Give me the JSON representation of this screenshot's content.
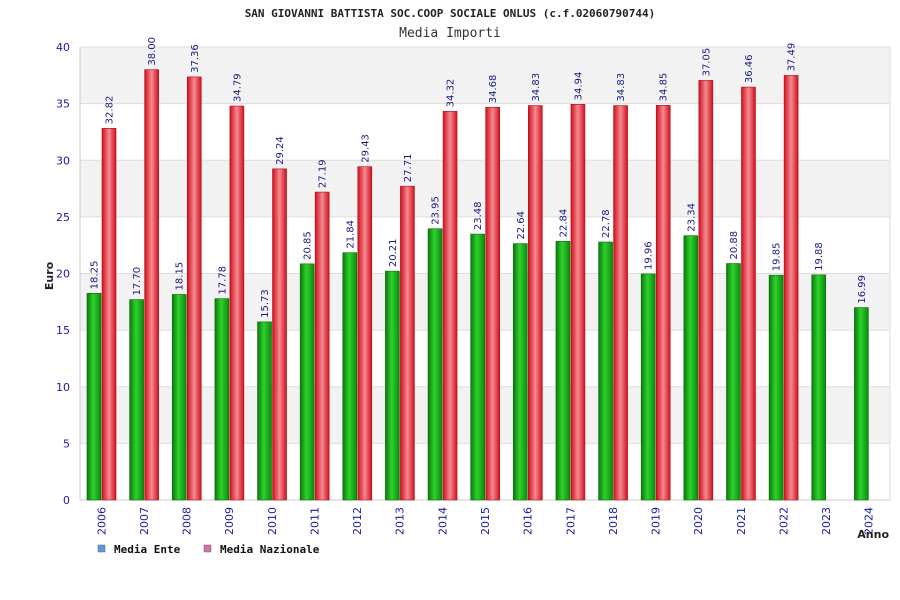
{
  "chart_data": {
    "type": "bar",
    "title": "SAN GIOVANNI BATTISTA SOC.COOP SOCIALE ONLUS (c.f.02060790744)",
    "subtitle": "Media Importi",
    "xlabel": "Anno",
    "ylabel": "Euro",
    "ylim": [
      0,
      40
    ],
    "yticks": [
      "0",
      "5",
      "10",
      "15",
      "20",
      "25",
      "30",
      "35",
      "40"
    ],
    "grid": true,
    "legend_position": "bottom-left",
    "categories": [
      "2006",
      "2007",
      "2008",
      "2009",
      "2010",
      "2011",
      "2012",
      "2013",
      "2014",
      "2015",
      "2016",
      "2017",
      "2018",
      "2019",
      "2020",
      "2021",
      "2022",
      "2023",
      "2024"
    ],
    "series": [
      {
        "name": "Media Ente",
        "color": "#1aa51a",
        "legend_color": "#5b9bd5",
        "values": [
          18.25,
          17.7,
          18.15,
          17.78,
          15.73,
          20.85,
          21.84,
          20.21,
          23.95,
          23.48,
          22.64,
          22.84,
          22.78,
          19.96,
          23.34,
          20.88,
          19.85,
          19.88,
          16.99
        ],
        "labels": [
          "18.25",
          "17.70",
          "18.15",
          "17.78",
          "15.73",
          "20.85",
          "21.84",
          "20.21",
          "23.95",
          "23.48",
          "22.64",
          "22.84",
          "22.78",
          "19.96",
          "23.34",
          "20.88",
          "19.85",
          "19.88",
          "16.99"
        ]
      },
      {
        "name": "Media Nazionale",
        "color": "#e8222e",
        "legend_color": "#d96fa8",
        "values": [
          32.82,
          38.0,
          37.36,
          34.79,
          29.24,
          27.19,
          29.43,
          27.71,
          34.32,
          34.68,
          34.83,
          34.94,
          34.83,
          34.85,
          37.05,
          36.46,
          37.49,
          null,
          null
        ],
        "labels": [
          "32.82",
          "38.00",
          "37.36",
          "34.79",
          "29.24",
          "27.19",
          "29.43",
          "27.71",
          "34.32",
          "34.68",
          "34.83",
          "34.94",
          "34.83",
          "34.85",
          "37.05",
          "36.46",
          "37.49",
          "",
          ""
        ]
      }
    ]
  }
}
